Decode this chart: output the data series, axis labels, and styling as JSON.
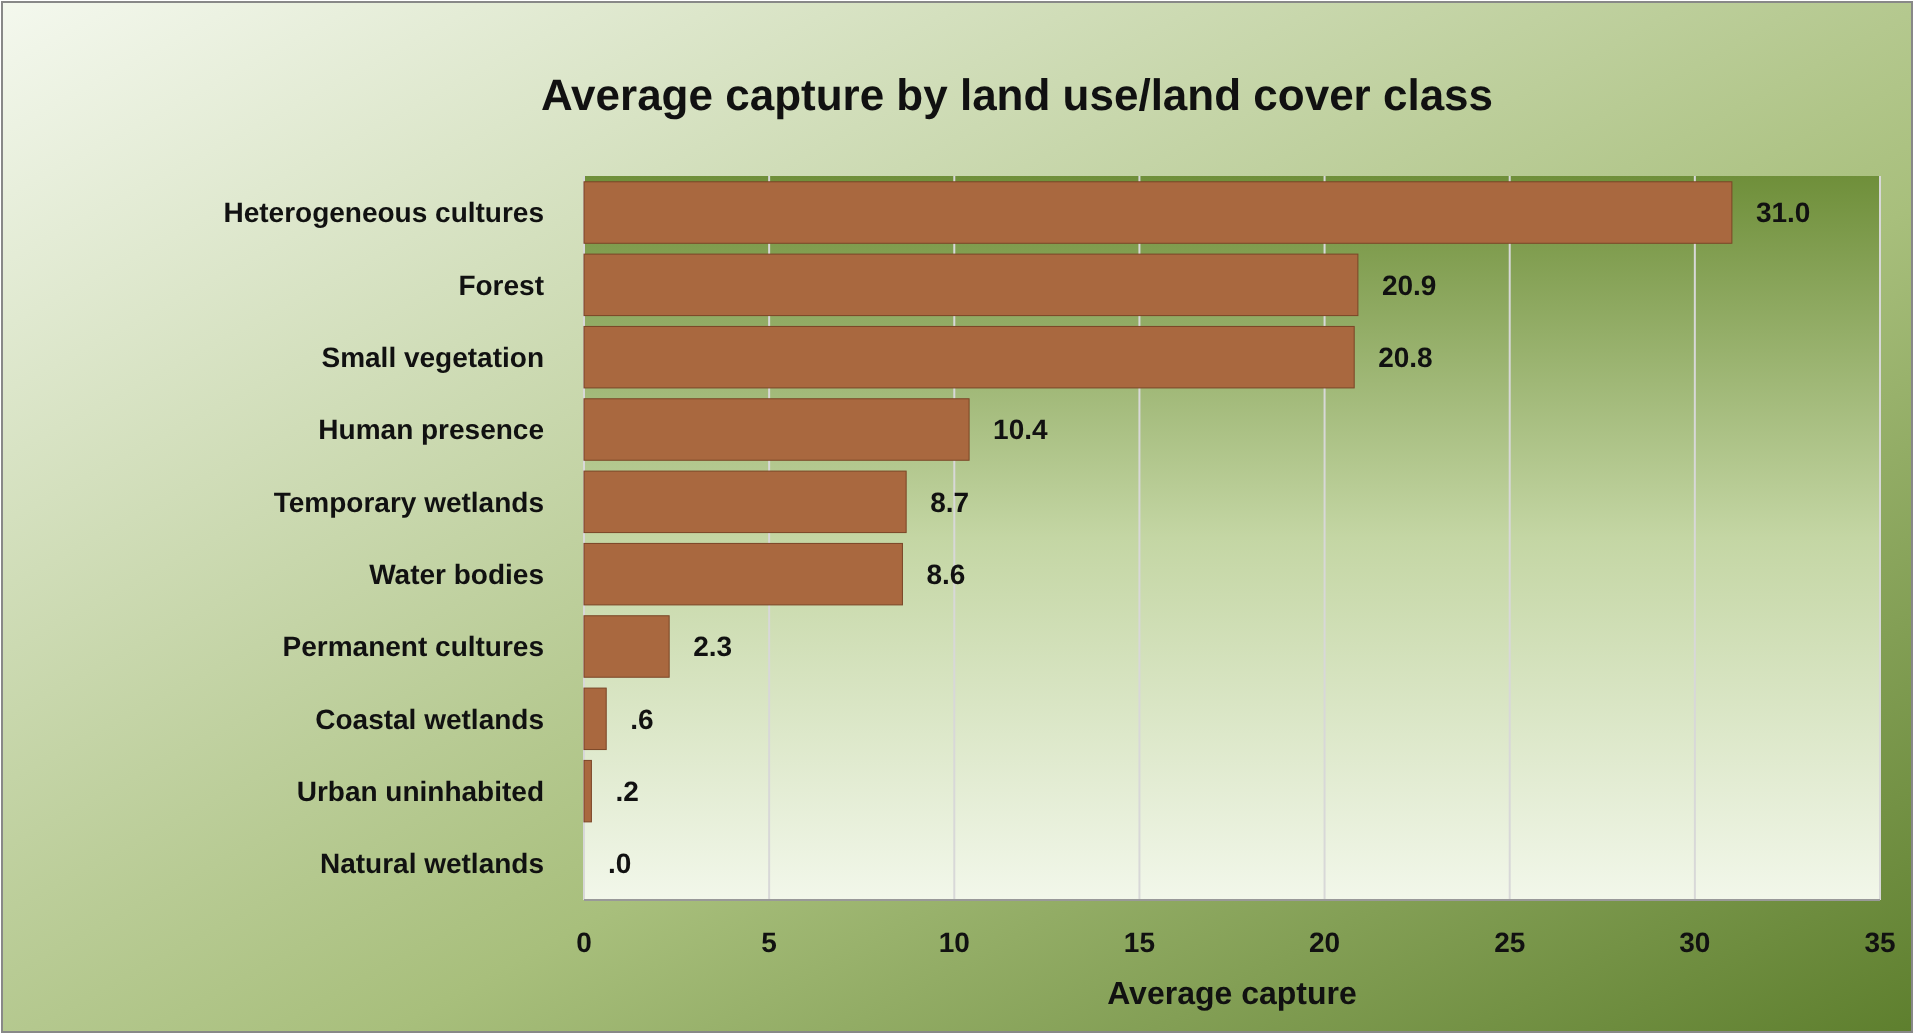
{
  "chart_data": {
    "type": "bar",
    "orientation": "horizontal",
    "title": "Average capture by land use/land cover class",
    "xlabel": "Average capture",
    "categories": [
      "Heterogeneous cultures",
      "Forest",
      "Small vegetation",
      "Human presence",
      "Temporary wetlands",
      "Water bodies",
      "Permanent cultures",
      "Coastal wetlands",
      "Urban uninhabited",
      "Natural wetlands"
    ],
    "values": [
      31.0,
      20.9,
      20.8,
      10.4,
      8.7,
      8.6,
      2.3,
      0.6,
      0.2,
      0.0
    ],
    "value_labels": [
      "31.0",
      "20.9",
      "20.8",
      "10.4",
      "8.7",
      "8.6",
      "2.3",
      ".6",
      ".2",
      ".0"
    ],
    "color": "#a9683f",
    "xlim": [
      0,
      35
    ],
    "xticks": [
      0,
      5,
      10,
      15,
      20,
      25,
      30,
      35
    ],
    "grid": "x"
  }
}
